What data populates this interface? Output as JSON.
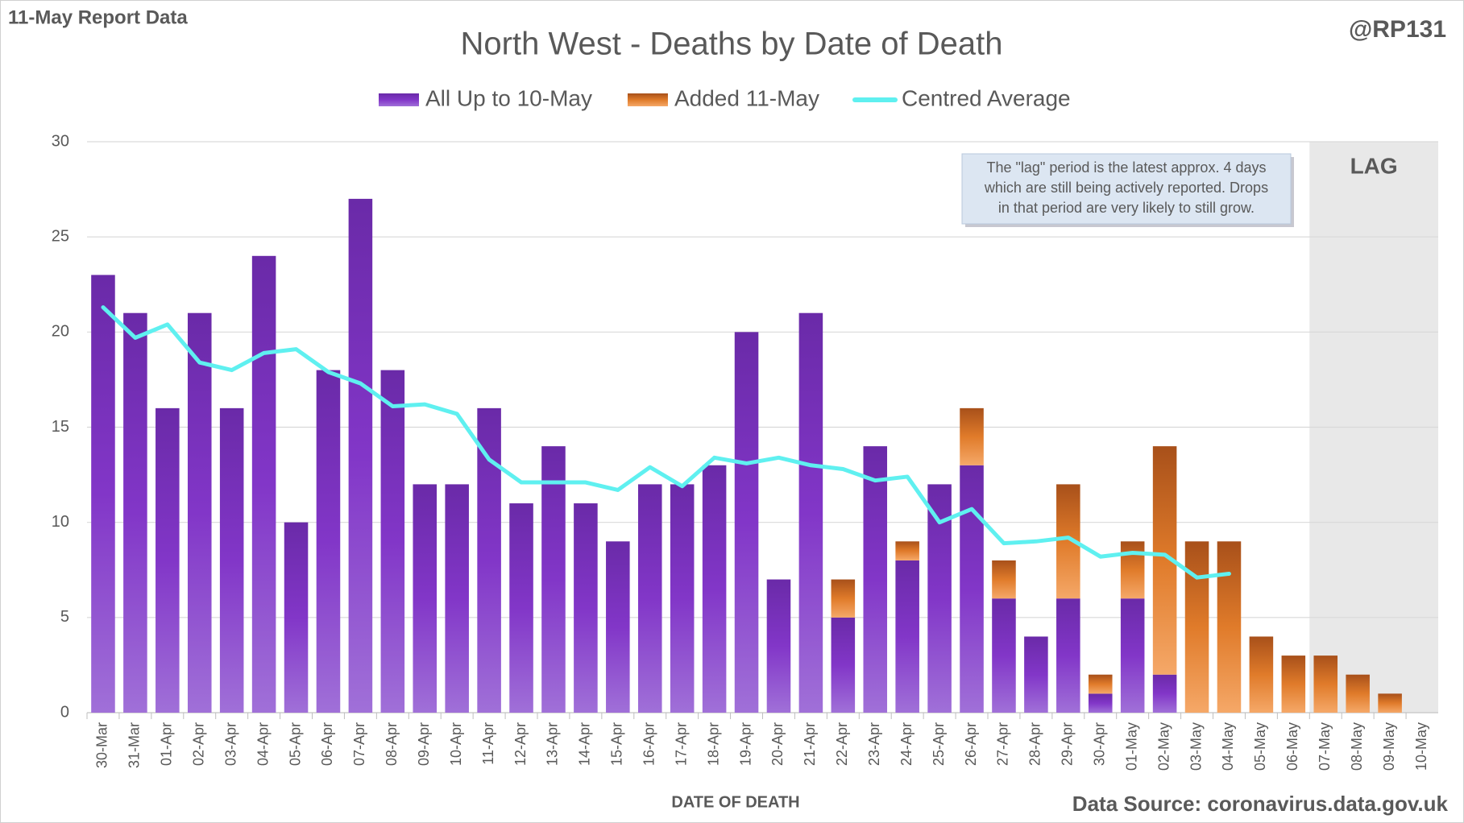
{
  "chart_data": {
    "type": "stacked-bar-line",
    "title": "North West - Deaths by Date of Death",
    "report_label": "11-May Report Data",
    "handle": "@RP131",
    "source": "Data Source: coronavirus.data.gov.uk",
    "x_label": "DATE OF DEATH",
    "categories": [
      "30-Mar",
      "31-Mar",
      "01-Apr",
      "02-Apr",
      "03-Apr",
      "04-Apr",
      "05-Apr",
      "06-Apr",
      "07-Apr",
      "08-Apr",
      "09-Apr",
      "10-Apr",
      "11-Apr",
      "12-Apr",
      "13-Apr",
      "14-Apr",
      "15-Apr",
      "16-Apr",
      "17-Apr",
      "18-Apr",
      "19-Apr",
      "20-Apr",
      "21-Apr",
      "22-Apr",
      "23-Apr",
      "24-Apr",
      "25-Apr",
      "26-Apr",
      "27-Apr",
      "28-Apr",
      "29-Apr",
      "30-Apr",
      "01-May",
      "02-May",
      "03-May",
      "04-May",
      "05-May",
      "06-May",
      "07-May",
      "08-May",
      "09-May",
      "10-May"
    ],
    "series": [
      {
        "name": "All Up to 10-May",
        "kind": "bar",
        "color": "#7b2fbf",
        "values": [
          23,
          21,
          16,
          21,
          16,
          24,
          10,
          18,
          27,
          18,
          12,
          12,
          16,
          11,
          14,
          11,
          9,
          12,
          12,
          13,
          20,
          7,
          21,
          5,
          14,
          8,
          12,
          13,
          6,
          4,
          6,
          1,
          6,
          2,
          0,
          0,
          0,
          0,
          0,
          0,
          0,
          0
        ]
      },
      {
        "name": "Added 11-May",
        "kind": "bar",
        "color": "#e07b2a",
        "values": [
          0,
          0,
          0,
          0,
          0,
          0,
          0,
          0,
          0,
          0,
          0,
          0,
          0,
          0,
          0,
          0,
          0,
          0,
          0,
          0,
          0,
          0,
          0,
          2,
          0,
          1,
          0,
          3,
          2,
          0,
          6,
          1,
          3,
          12,
          9,
          9,
          4,
          3,
          3,
          2,
          1,
          0
        ]
      },
      {
        "name": "Centred Average",
        "kind": "line",
        "color": "#5ff0f0",
        "values": [
          21.3,
          19.7,
          20.4,
          18.4,
          18.0,
          18.9,
          19.1,
          17.9,
          17.3,
          16.1,
          16.2,
          15.7,
          13.3,
          12.1,
          12.1,
          12.1,
          11.7,
          12.9,
          11.9,
          13.4,
          13.1,
          13.4,
          13.0,
          12.8,
          12.2,
          12.4,
          10.0,
          10.7,
          8.9,
          9.0,
          9.2,
          8.2,
          8.4,
          8.3,
          7.1,
          7.3,
          null,
          null,
          null,
          null,
          null,
          null
        ]
      }
    ],
    "ylim": [
      0,
      30
    ],
    "yticks": [
      0,
      5,
      10,
      15,
      20,
      25,
      30
    ],
    "grid": true,
    "lag": {
      "label": "LAG",
      "from": "07-May"
    },
    "annotation": [
      "The \"lag\" period is the latest approx. 4 days",
      "which are still being actively reported.  Drops",
      "in that period are very likely to still grow."
    ]
  }
}
